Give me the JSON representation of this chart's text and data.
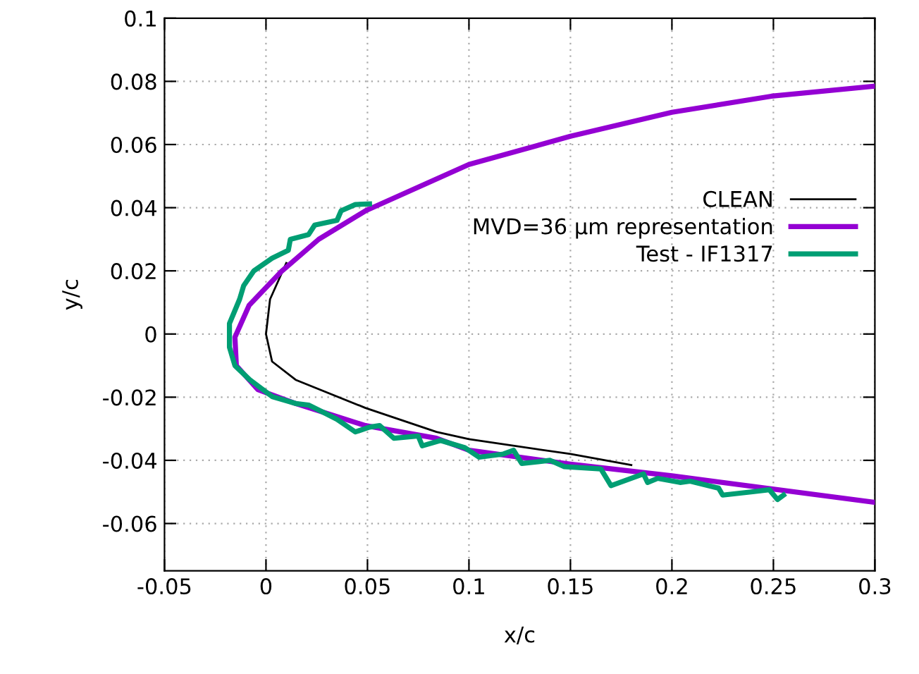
{
  "chart_data": {
    "type": "line",
    "xlabel": "x/c",
    "ylabel": "y/c",
    "xlim": [
      -0.05,
      0.3
    ],
    "ylim": [
      -0.075,
      0.1
    ],
    "xticks": [
      -0.05,
      0,
      0.05,
      0.1,
      0.15,
      0.2,
      0.25,
      0.3
    ],
    "yticks": [
      -0.06,
      -0.04,
      -0.02,
      0,
      0.02,
      0.04,
      0.06,
      0.08,
      0.1
    ],
    "grid": true,
    "legend": "right",
    "marker": "none",
    "line_style": "solid",
    "series": [
      {
        "name": "CLEAN",
        "color": "#000000",
        "x": [
          0.01,
          0.002,
          0,
          0.003,
          0.0146,
          0.049,
          0.084,
          0.1,
          0.15,
          0.18
        ],
        "values": [
          0.0225,
          0.011,
          0,
          -0.0087,
          -0.0145,
          -0.0234,
          -0.031,
          -0.0333,
          -0.038,
          -0.0415
        ]
      },
      {
        "name": "MVD=36 µm representation",
        "color": "#9400d3",
        "x": [
          0.3,
          0.249,
          0.2,
          0.15,
          0.1,
          0.049,
          0.026,
          0.0076,
          -0.0083,
          -0.0153,
          -0.0146,
          -0.004,
          0.0146,
          0.049,
          0.084,
          0.1,
          0.15,
          0.2,
          0.3
        ],
        "values": [
          0.0785,
          0.0753,
          0.0702,
          0.0626,
          0.0537,
          0.039,
          0.03,
          0.0198,
          0.0091,
          -0.001,
          -0.01,
          -0.0176,
          -0.022,
          -0.029,
          -0.033,
          -0.0368,
          -0.0412,
          -0.0449,
          -0.0533
        ]
      },
      {
        "name": "Test - IF1317",
        "color": "#009e73",
        "x": [
          0.051,
          0.044,
          0.037,
          0.035,
          0.024,
          0.021,
          0.012,
          0.011,
          0.003,
          -0.006,
          -0.011,
          -0.013,
          -0.018,
          -0.018,
          -0.0153,
          -0.008,
          0.003,
          0.0146,
          0.021,
          0.028,
          0.035,
          0.044,
          0.051,
          0.056,
          0.063,
          0.075,
          0.077,
          0.086,
          0.098,
          0.105,
          0.117,
          0.122,
          0.126,
          0.14,
          0.147,
          0.165,
          0.17,
          0.186,
          0.188,
          0.193,
          0.204,
          0.209,
          0.223,
          0.225,
          0.239,
          0.248,
          0.252,
          0.255
        ],
        "values": [
          0.0412,
          0.041,
          0.039,
          0.036,
          0.0345,
          0.0315,
          0.03,
          0.0265,
          0.024,
          0.02,
          0.0153,
          0.011,
          0.0033,
          -0.0042,
          -0.01,
          -0.0145,
          -0.0198,
          -0.022,
          -0.0225,
          -0.0247,
          -0.027,
          -0.031,
          -0.0295,
          -0.029,
          -0.033,
          -0.0323,
          -0.0354,
          -0.0337,
          -0.036,
          -0.039,
          -0.038,
          -0.0368,
          -0.041,
          -0.04,
          -0.042,
          -0.0427,
          -0.048,
          -0.0443,
          -0.047,
          -0.0457,
          -0.047,
          -0.0466,
          -0.0488,
          -0.051,
          -0.05,
          -0.0493,
          -0.0524,
          -0.051
        ]
      }
    ]
  }
}
